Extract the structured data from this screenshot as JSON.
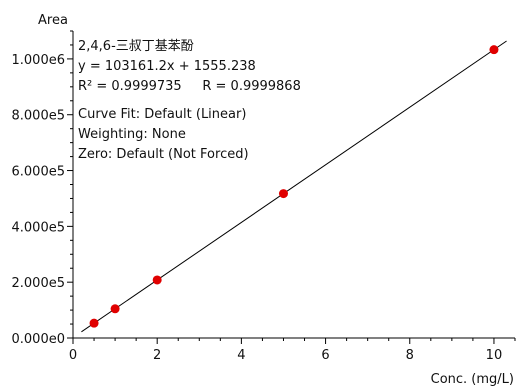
{
  "chart_data": {
    "type": "scatter",
    "title": "",
    "xlabel": "Conc. (mg/L)",
    "ylabel": "Area",
    "xlim": [
      0,
      10.5
    ],
    "ylim": [
      0,
      1100000
    ],
    "x_ticks": [
      0,
      2,
      4,
      6,
      8,
      10
    ],
    "x_tick_labels": [
      "0",
      "2",
      "4",
      "6",
      "8",
      "10"
    ],
    "y_ticks": [
      0,
      200000,
      400000,
      600000,
      800000,
      1000000
    ],
    "y_tick_labels": [
      "0.000e0",
      "2.000e5",
      "4.000e5",
      "6.000e5",
      "8.000e5",
      "1.000e6"
    ],
    "grid": false,
    "series": [
      {
        "points": [
          {
            "x": 0.5,
            "y": 53136
          },
          {
            "x": 1.0,
            "y": 104717
          },
          {
            "x": 2.0,
            "y": 207877
          },
          {
            "x": 5.0,
            "y": 517361
          },
          {
            "x": 10.0,
            "y": 1033167
          }
        ],
        "marker_color": "#e00000"
      }
    ],
    "fit_line": {
      "slope": 103161.2,
      "intercept": 1555.238,
      "color": "#000000"
    },
    "annotations": [
      "2,4,6-三叔丁基苯酚",
      "y = 103161.2x + 1555.238",
      "R² = 0.9999735     R = 0.9999868",
      "Curve Fit: Default (Linear)",
      "Weighting: None",
      "Zero: Default (Not Forced)"
    ]
  }
}
